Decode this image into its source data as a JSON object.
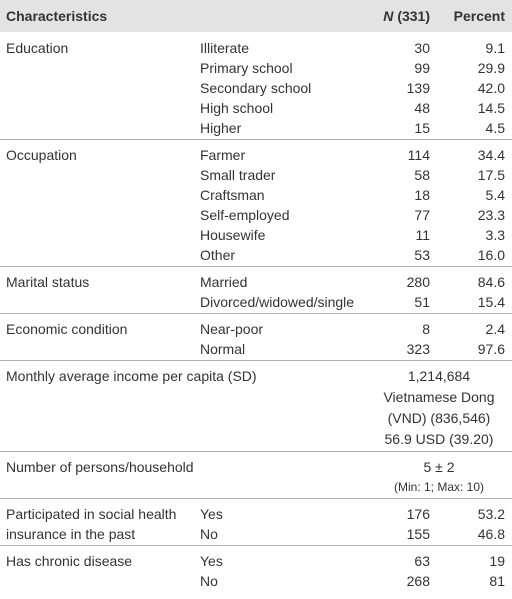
{
  "header": {
    "characteristics": "Characteristics",
    "n_italic": "N",
    "n_rest": "(331)",
    "percent": "Percent"
  },
  "sections": [
    {
      "label": [
        "Education"
      ],
      "rows": [
        [
          "Illiterate",
          "30",
          "9.1"
        ],
        [
          "Primary school",
          "99",
          "29.9"
        ],
        [
          "Secondary school",
          "139",
          "42.0"
        ],
        [
          "High school",
          "48",
          "14.5"
        ],
        [
          "Higher",
          "15",
          "4.5"
        ]
      ]
    },
    {
      "label": [
        "Occupation"
      ],
      "rows": [
        [
          "Farmer",
          "114",
          "34.4"
        ],
        [
          "Small trader",
          "58",
          "17.5"
        ],
        [
          "Craftsman",
          "18",
          "5.4"
        ],
        [
          "Self-employed",
          "77",
          "23.3"
        ],
        [
          "Housewife",
          "11",
          "3.3"
        ],
        [
          "Other",
          "53",
          "16.0"
        ]
      ]
    },
    {
      "label": [
        "Marital status"
      ],
      "rows": [
        [
          "Married",
          "280",
          "84.6"
        ],
        [
          "Divorced/widowed/single",
          "51",
          "15.4"
        ]
      ]
    },
    {
      "label": [
        "Economic condition"
      ],
      "rows": [
        [
          "Near-poor",
          "8",
          "2.4"
        ],
        [
          "Normal",
          "323",
          "97.6"
        ]
      ]
    },
    {
      "label": [
        "Monthly average income per capita (SD)"
      ],
      "value_lines": [
        "1,214,684",
        "Vietnamese Dong",
        "(VND) (836,546)",
        "56.9 USD (39.20)"
      ]
    },
    {
      "label": [
        "Number of persons/household"
      ],
      "value_lines": [
        "5 ± 2",
        "(Min: 1; Max: 10)"
      ]
    },
    {
      "label": [
        "Participated in social health",
        "insurance in the past"
      ],
      "rows": [
        [
          "Yes",
          "176",
          "53.2"
        ],
        [
          "No",
          "155",
          "46.8"
        ]
      ]
    },
    {
      "label": [
        "Has chronic disease"
      ],
      "rows": [
        [
          "Yes",
          "63",
          "19"
        ],
        [
          "No",
          "268",
          "81"
        ]
      ]
    }
  ]
}
